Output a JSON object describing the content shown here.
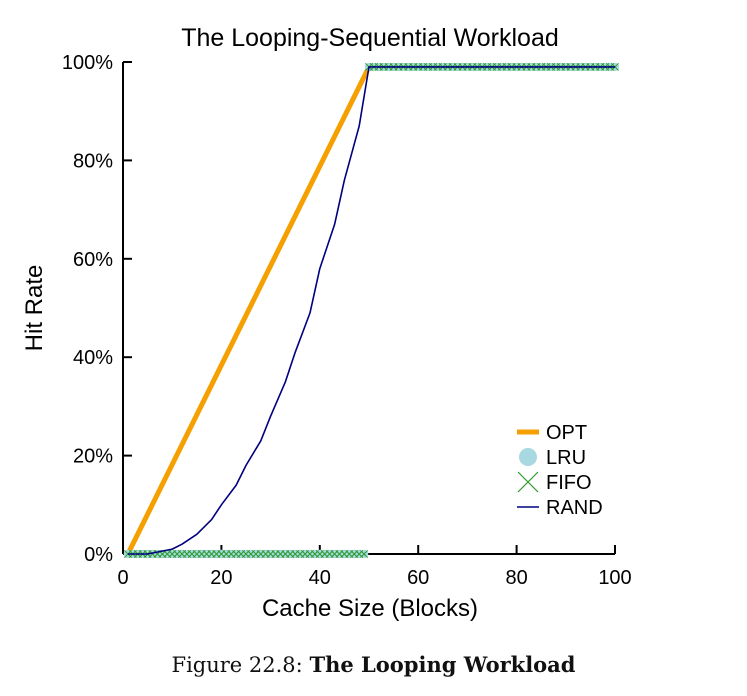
{
  "chart_data": {
    "type": "line",
    "title": "The Looping-Sequential Workload",
    "xlabel": "Cache Size (Blocks)",
    "ylabel": "Hit Rate",
    "xlim": [
      0,
      100
    ],
    "ylim": [
      0,
      100
    ],
    "x_ticks": [
      "0",
      "20",
      "40",
      "60",
      "80",
      "100"
    ],
    "y_ticks": [
      "0%",
      "20%",
      "40%",
      "60%",
      "80%",
      "100%"
    ],
    "legend_position": "lower-right",
    "series": [
      {
        "name": "OPT",
        "color": "#f5a000",
        "style": "line",
        "x": [
          1,
          50,
          100
        ],
        "y": [
          0,
          99,
          99
        ]
      },
      {
        "name": "LRU",
        "color": "#a8d8e0",
        "style": "circle",
        "x_range": [
          1,
          100
        ],
        "y_step": {
          "before": 0,
          "at": 50,
          "after": 99
        }
      },
      {
        "name": "FIFO",
        "color": "#2a9a2a",
        "style": "x",
        "x_range": [
          1,
          100
        ],
        "y_step": {
          "before": 0,
          "at": 50,
          "after": 99
        }
      },
      {
        "name": "RAND",
        "color": "#000080",
        "style": "line",
        "x": [
          1,
          5,
          10,
          12,
          15,
          18,
          20,
          23,
          25,
          28,
          30,
          33,
          35,
          38,
          40,
          43,
          45,
          48,
          50,
          60,
          70,
          80,
          90,
          100
        ],
        "y": [
          0,
          0,
          1,
          2,
          4,
          7,
          10,
          14,
          18,
          23,
          28,
          35,
          41,
          49,
          58,
          67,
          76,
          87,
          99,
          99,
          99,
          99,
          99,
          99
        ]
      }
    ]
  },
  "caption": {
    "label": "Figure 22.8:",
    "title": "The Looping Workload"
  }
}
